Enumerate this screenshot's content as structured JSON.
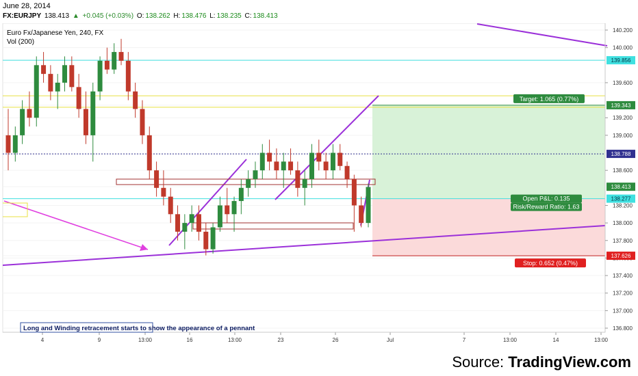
{
  "header": {
    "date": "June 28, 2014",
    "symbol": "FX:EURJPY",
    "last": "138.413",
    "change": "+0.045 (+0.03%)",
    "open_label": "O:",
    "open": "138.262",
    "high_label": "H:",
    "high": "138.476",
    "low_label": "L:",
    "low": "138.235",
    "close_label": "C:",
    "close": "138.413"
  },
  "chart_title": "Euro Fx/Japanese Yen, 240, FX",
  "volume_label": "Vol (200)",
  "colors": {
    "up_candle": "#2e8b3e",
    "down_candle": "#c0392b",
    "trendline": "#9b30d9",
    "arrow": "#e040e0",
    "cyan_line": "#40e0e0",
    "yellow_line": "#e8e040",
    "navy_line": "#303090",
    "target_zone": "#d8f2d8",
    "stop_zone": "#fbdada",
    "target_badge": "#2e8b3e",
    "stop_badge": "#e02020"
  },
  "chart_data": {
    "type": "candlestick",
    "y_axis": {
      "min": 136.8,
      "max": 140.2,
      "ticks": [
        "140.200",
        "140.000",
        "139.856",
        "139.600",
        "139.343",
        "139.200",
        "139.000",
        "138.788",
        "138.600",
        "138.413",
        "138.277",
        "138.200",
        "138.000",
        "137.800",
        "137.626",
        "137.600",
        "137.400",
        "137.200",
        "137.000",
        "136.800"
      ]
    },
    "price_tags": [
      {
        "value": "139.856",
        "kind": "cyan"
      },
      {
        "value": "139.343",
        "kind": "green"
      },
      {
        "value": "138.788",
        "kind": "navy"
      },
      {
        "value": "138.413",
        "kind": "green"
      },
      {
        "value": "138.277",
        "kind": "cyan"
      },
      {
        "value": "137.626",
        "kind": "red"
      }
    ],
    "x_axis": {
      "ticks": [
        "4",
        "9",
        "13:00",
        "16",
        "13:00",
        "23",
        "26",
        "Jul",
        "7",
        "13:00",
        "14",
        "13:00"
      ]
    },
    "horizontal_levels": [
      {
        "price": 139.856,
        "style": "cyan"
      },
      {
        "price": 139.45,
        "style": "yellow"
      },
      {
        "price": 139.32,
        "style": "yellow"
      },
      {
        "price": 138.788,
        "style": "navy-dotted"
      },
      {
        "price": 138.277,
        "style": "cyan"
      }
    ],
    "position": {
      "target_label": "Target: 1.065 (0.77%)",
      "stop_label": "Stop: 0.652 (0.47%)",
      "open_pnl_label": "Open P&L: 0.135",
      "rr_label": "Risk/Reward Ratio: 1.63",
      "entry": 138.277,
      "target": 139.343,
      "stop": 137.626
    },
    "candles": [
      [
        139.0,
        139.3,
        138.6,
        138.8
      ],
      [
        138.8,
        139.1,
        138.7,
        139.0
      ],
      [
        139.0,
        139.4,
        138.9,
        139.3
      ],
      [
        139.3,
        139.5,
        139.1,
        139.2
      ],
      [
        139.2,
        139.9,
        139.1,
        139.8
      ],
      [
        139.8,
        139.95,
        139.6,
        139.7
      ],
      [
        139.7,
        139.8,
        139.4,
        139.5
      ],
      [
        139.5,
        139.7,
        139.3,
        139.6
      ],
      [
        139.6,
        139.9,
        139.5,
        139.8
      ],
      [
        139.8,
        139.9,
        139.5,
        139.55
      ],
      [
        139.55,
        139.7,
        139.2,
        139.3
      ],
      [
        139.3,
        139.5,
        138.9,
        139.0
      ],
      [
        139.0,
        139.6,
        138.7,
        139.5
      ],
      [
        139.5,
        139.9,
        139.4,
        139.85
      ],
      [
        139.85,
        140.0,
        139.7,
        139.75
      ],
      [
        139.75,
        140.05,
        139.7,
        139.95
      ],
      [
        139.95,
        140.1,
        139.8,
        139.85
      ],
      [
        139.85,
        139.95,
        139.4,
        139.5
      ],
      [
        139.5,
        139.6,
        139.2,
        139.3
      ],
      [
        139.3,
        139.4,
        138.9,
        139.0
      ],
      [
        139.0,
        139.1,
        138.5,
        138.6
      ],
      [
        138.6,
        138.7,
        138.3,
        138.4
      ],
      [
        138.4,
        138.6,
        138.2,
        138.3
      ],
      [
        138.3,
        138.4,
        138.0,
        138.1
      ],
      [
        138.1,
        138.2,
        137.8,
        137.9
      ],
      [
        137.9,
        138.1,
        137.7,
        138.0
      ],
      [
        138.0,
        138.2,
        137.9,
        138.1
      ],
      [
        138.1,
        138.2,
        137.8,
        137.9
      ],
      [
        137.9,
        138.0,
        137.63,
        137.7
      ],
      [
        137.7,
        138.0,
        137.65,
        137.95
      ],
      [
        137.95,
        138.3,
        137.9,
        138.2
      ],
      [
        138.2,
        138.4,
        138.0,
        138.1
      ],
      [
        138.1,
        138.3,
        137.9,
        138.25
      ],
      [
        138.25,
        138.5,
        138.1,
        138.4
      ],
      [
        138.4,
        138.6,
        138.3,
        138.5
      ],
      [
        138.5,
        138.7,
        138.4,
        138.6
      ],
      [
        138.6,
        138.9,
        138.5,
        138.8
      ],
      [
        138.8,
        138.95,
        138.6,
        138.7
      ],
      [
        138.7,
        138.85,
        138.5,
        138.6
      ],
      [
        138.6,
        138.8,
        138.4,
        138.7
      ],
      [
        138.7,
        138.85,
        138.55,
        138.6
      ],
      [
        138.6,
        138.7,
        138.3,
        138.4
      ],
      [
        138.4,
        138.6,
        138.2,
        138.5
      ],
      [
        138.5,
        138.9,
        138.4,
        138.8
      ],
      [
        138.8,
        138.95,
        138.6,
        138.7
      ],
      [
        138.7,
        138.8,
        138.5,
        138.6
      ],
      [
        138.6,
        138.9,
        138.5,
        138.8
      ],
      [
        138.8,
        138.9,
        138.6,
        138.65
      ],
      [
        138.65,
        138.7,
        138.4,
        138.5
      ],
      [
        138.5,
        138.55,
        137.9,
        138.2
      ],
      [
        138.2,
        138.3,
        137.95,
        138.0
      ],
      [
        138.0,
        138.45,
        137.95,
        138.41
      ]
    ]
  },
  "annotation": {
    "text": "Long and Winding retracement starts to show the appearance of a pennant"
  },
  "footer": {
    "source_prefix": "Source: ",
    "source_brand": "TradingView.com"
  }
}
